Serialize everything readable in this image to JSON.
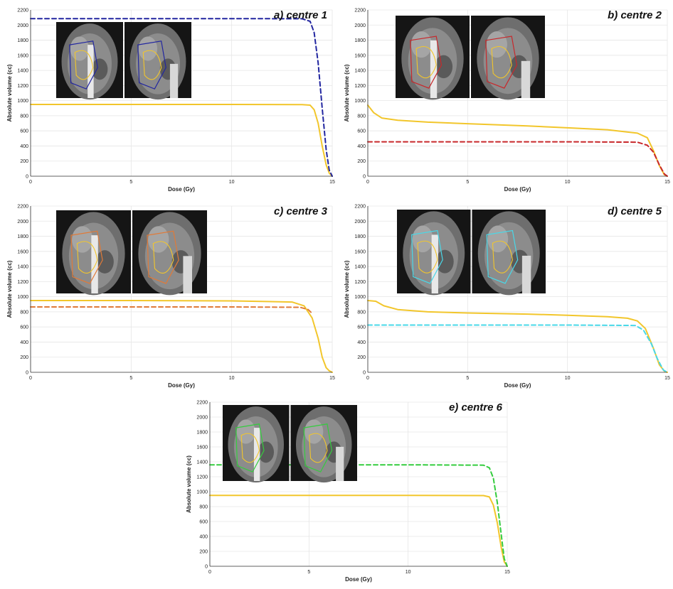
{
  "colors": {
    "reference": "#f2c62b",
    "centre_1": "#2226a0",
    "centre_2": "#c8282b",
    "centre_3": "#e07a38",
    "centre_5": "#49d8e8",
    "centre_6": "#34cc3e",
    "grid": "#e6e6e6",
    "axis": "#333333"
  },
  "chart_data": [
    {
      "id": "a",
      "type": "line",
      "title": "a) centre 1",
      "xlabel": "Dose (Gy)",
      "ylabel": "Absolute volume (cc)",
      "xlim": [
        0,
        15
      ],
      "ylim": [
        0,
        2200
      ],
      "x_ticks": [
        0,
        5,
        10,
        15
      ],
      "y_ticks": [
        0,
        200,
        400,
        600,
        800,
        1000,
        1200,
        1400,
        1600,
        1800,
        2000,
        2200
      ],
      "grid": true,
      "inset": "CT coronal and sagittal views with contours",
      "series": [
        {
          "color_key": "reference",
          "style": "solid",
          "x": [
            0,
            5,
            10,
            13.5,
            13.9,
            14.1,
            14.3,
            14.5,
            14.7,
            14.85,
            15
          ],
          "y": [
            950,
            950,
            950,
            948,
            940,
            880,
            700,
            400,
            150,
            40,
            0
          ]
        },
        {
          "color_key": "centre_1",
          "style": "dashed",
          "x": [
            0,
            5,
            10,
            13.5,
            13.9,
            14.1,
            14.3,
            14.5,
            14.7,
            14.85,
            15
          ],
          "y": [
            2085,
            2085,
            2085,
            2083,
            2050,
            1900,
            1500,
            900,
            350,
            80,
            0
          ]
        }
      ]
    },
    {
      "id": "b",
      "type": "line",
      "title": "b) centre 2",
      "xlabel": "Dose (Gy)",
      "ylabel": "Absolute volume (cc)",
      "xlim": [
        0,
        15
      ],
      "ylim": [
        0,
        2200
      ],
      "x_ticks": [
        0,
        5,
        10,
        15
      ],
      "y_ticks": [
        0,
        200,
        400,
        600,
        800,
        1000,
        1200,
        1400,
        1600,
        1800,
        2000,
        2200
      ],
      "grid": true,
      "inset": "CT coronal and sagittal views with contours",
      "series": [
        {
          "color_key": "reference",
          "style": "solid",
          "x": [
            0,
            0.3,
            0.7,
            1.5,
            3,
            5,
            8,
            10,
            12,
            13.5,
            14,
            14.3,
            14.6,
            14.85,
            15
          ],
          "y": [
            940,
            840,
            770,
            740,
            715,
            695,
            665,
            640,
            615,
            570,
            510,
            340,
            140,
            20,
            0
          ]
        },
        {
          "color_key": "centre_2",
          "style": "dashed",
          "x": [
            0,
            5,
            10,
            13.5,
            14,
            14.3,
            14.6,
            14.85,
            15
          ],
          "y": [
            455,
            455,
            455,
            450,
            410,
            320,
            150,
            30,
            0
          ]
        }
      ]
    },
    {
      "id": "c",
      "type": "line",
      "title": "c) centre 3",
      "xlabel": "Dose (Gy)",
      "ylabel": "Absolute volume (cc)",
      "xlim": [
        0,
        15
      ],
      "ylim": [
        0,
        2200
      ],
      "x_ticks": [
        0,
        5,
        10,
        15
      ],
      "y_ticks": [
        0,
        200,
        400,
        600,
        800,
        1000,
        1200,
        1400,
        1600,
        1800,
        2000,
        2200
      ],
      "grid": true,
      "inset": "CT coronal and sagittal views with contours",
      "series": [
        {
          "color_key": "reference",
          "style": "solid",
          "x": [
            0,
            5,
            10,
            13,
            13.6,
            14,
            14.3,
            14.5,
            14.7,
            14.85,
            15
          ],
          "y": [
            950,
            950,
            945,
            930,
            880,
            720,
            450,
            200,
            60,
            20,
            0
          ]
        },
        {
          "color_key": "centre_3",
          "style": "dashed",
          "x": [
            0,
            5,
            10,
            13.4,
            13.8,
            14
          ],
          "y": [
            865,
            865,
            865,
            860,
            830,
            780
          ]
        }
      ]
    },
    {
      "id": "d",
      "type": "line",
      "title": "d) centre 5",
      "xlabel": "Dose (Gy)",
      "ylabel": "Absolute volume (cc)",
      "xlim": [
        0,
        15
      ],
      "ylim": [
        0,
        2200
      ],
      "x_ticks": [
        0,
        5,
        10,
        15
      ],
      "y_ticks": [
        0,
        200,
        400,
        600,
        800,
        1000,
        1200,
        1400,
        1600,
        1800,
        2000,
        2200
      ],
      "grid": true,
      "inset": "CT coronal and sagittal views with contours",
      "series": [
        {
          "color_key": "reference",
          "style": "solid",
          "x": [
            0,
            0.4,
            0.8,
            1.5,
            3,
            5,
            8,
            10,
            12,
            13,
            13.5,
            13.9,
            14.3,
            14.6,
            14.85,
            15
          ],
          "y": [
            950,
            940,
            880,
            830,
            800,
            785,
            770,
            755,
            735,
            715,
            680,
            580,
            320,
            100,
            15,
            0
          ]
        },
        {
          "color_key": "centre_5",
          "style": "dashed",
          "x": [
            0,
            5,
            10,
            13.4,
            13.8,
            14.2,
            14.5,
            14.8,
            15
          ],
          "y": [
            625,
            625,
            625,
            620,
            560,
            380,
            180,
            30,
            0
          ]
        }
      ]
    },
    {
      "id": "e",
      "type": "line",
      "title": "e) centre 6",
      "xlabel": "Dose (Gy)",
      "ylabel": "Absolute volume (cc)",
      "xlim": [
        0,
        15
      ],
      "ylim": [
        0,
        2200
      ],
      "x_ticks": [
        0,
        5,
        10,
        15
      ],
      "y_ticks": [
        0,
        200,
        400,
        600,
        800,
        1000,
        1200,
        1400,
        1600,
        1800,
        2000,
        2200
      ],
      "grid": true,
      "inset": "CT coronal and sagittal views with contours",
      "series": [
        {
          "color_key": "reference",
          "style": "solid",
          "x": [
            0,
            5,
            10,
            13.8,
            14.1,
            14.3,
            14.5,
            14.7,
            14.85,
            15
          ],
          "y": [
            950,
            950,
            950,
            948,
            930,
            820,
            580,
            250,
            60,
            0
          ]
        },
        {
          "color_key": "centre_6",
          "style": "dashed",
          "x": [
            0,
            5,
            10,
            13.8,
            14.1,
            14.3,
            14.5,
            14.7,
            14.85,
            15
          ],
          "y": [
            1360,
            1360,
            1360,
            1355,
            1320,
            1180,
            850,
            420,
            100,
            0
          ]
        }
      ]
    }
  ]
}
